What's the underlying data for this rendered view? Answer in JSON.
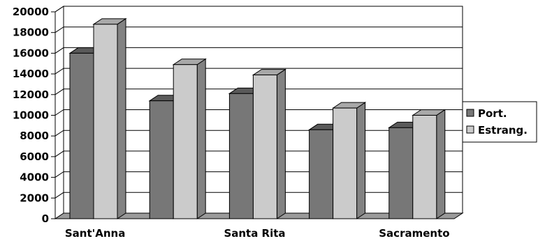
{
  "chart_data": {
    "type": "bar",
    "categories": [
      "Sant'Anna",
      "",
      "Santa Rita",
      "",
      "Sacramento"
    ],
    "series": [
      {
        "name": "Port.",
        "values": [
          16000,
          11400,
          12100,
          8600,
          8800
        ],
        "color": "#777777",
        "top_color": "#5a5a5a",
        "side_color": "#3d3d3d"
      },
      {
        "name": "Estrang.",
        "values": [
          18800,
          14900,
          13900,
          10700,
          10000
        ],
        "color": "#cbcbcb",
        "top_color": "#a8a8a8",
        "side_color": "#828282"
      }
    ],
    "yticks": [
      0,
      2000,
      4000,
      6000,
      8000,
      10000,
      12000,
      14000,
      16000,
      18000,
      20000
    ],
    "ylim": [
      0,
      20000
    ],
    "grid": true,
    "legend_position": "right",
    "title": "",
    "xlabel": "",
    "ylabel": ""
  }
}
